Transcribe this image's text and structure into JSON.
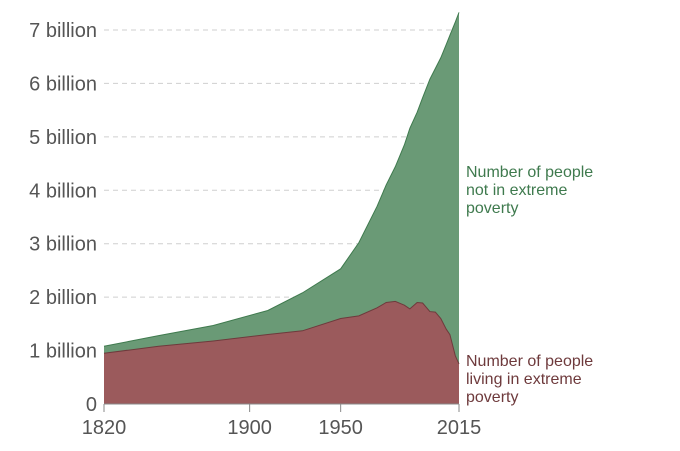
{
  "chart_data": {
    "type": "area",
    "stacked": true,
    "title": "",
    "xlabel": "",
    "ylabel": "",
    "xlim": [
      1820,
      2015
    ],
    "ylim": [
      0,
      7000000000
    ],
    "grid": true,
    "x_ticks": [
      1820,
      1900,
      1950,
      2015
    ],
    "x_tick_labels": [
      "1820",
      "1900",
      "1950",
      "2015"
    ],
    "y_ticks": [
      0,
      1000000000,
      2000000000,
      3000000000,
      4000000000,
      5000000000,
      6000000000,
      7000000000
    ],
    "y_tick_labels": [
      "0",
      "1 billion",
      "2 billion",
      "3 billion",
      "4 billion",
      "5 billion",
      "6 billion",
      "7 billion"
    ],
    "series": [
      {
        "name": "Number of people living in extreme poverty",
        "label_lines": [
          "Number of people",
          "living in extreme",
          "poverty"
        ],
        "color": "#9b5a5c",
        "line_color": "#6e3a3c",
        "x": [
          1820,
          1850,
          1880,
          1910,
          1929,
          1950,
          1960,
          1970,
          1975,
          1980,
          1985,
          1988,
          1992,
          1995,
          1999,
          2002,
          2005,
          2008,
          2010,
          2013,
          2015
        ],
        "values": [
          950000000,
          1080000000,
          1180000000,
          1300000000,
          1370000000,
          1600000000,
          1650000000,
          1800000000,
          1900000000,
          1920000000,
          1850000000,
          1780000000,
          1900000000,
          1890000000,
          1730000000,
          1720000000,
          1600000000,
          1400000000,
          1300000000,
          900000000,
          750000000
        ]
      },
      {
        "name": "Number of people not in extreme poverty",
        "label_lines": [
          "Number of people",
          "not in extreme",
          "poverty"
        ],
        "color": "#6a9a76",
        "line_color": "#3f7a4e",
        "x": [
          1820,
          1850,
          1880,
          1910,
          1929,
          1950,
          1960,
          1970,
          1975,
          1980,
          1985,
          1988,
          1992,
          1995,
          1999,
          2002,
          2005,
          2008,
          2010,
          2013,
          2015
        ],
        "values": [
          130000000,
          200000000,
          290000000,
          450000000,
          710000000,
          930000000,
          1370000000,
          1900000000,
          2200000000,
          2520000000,
          3000000000,
          3380000000,
          3560000000,
          3840000000,
          4350000000,
          4560000000,
          4880000000,
          5330000000,
          5600000000,
          6250000000,
          6580000000
        ]
      }
    ]
  }
}
